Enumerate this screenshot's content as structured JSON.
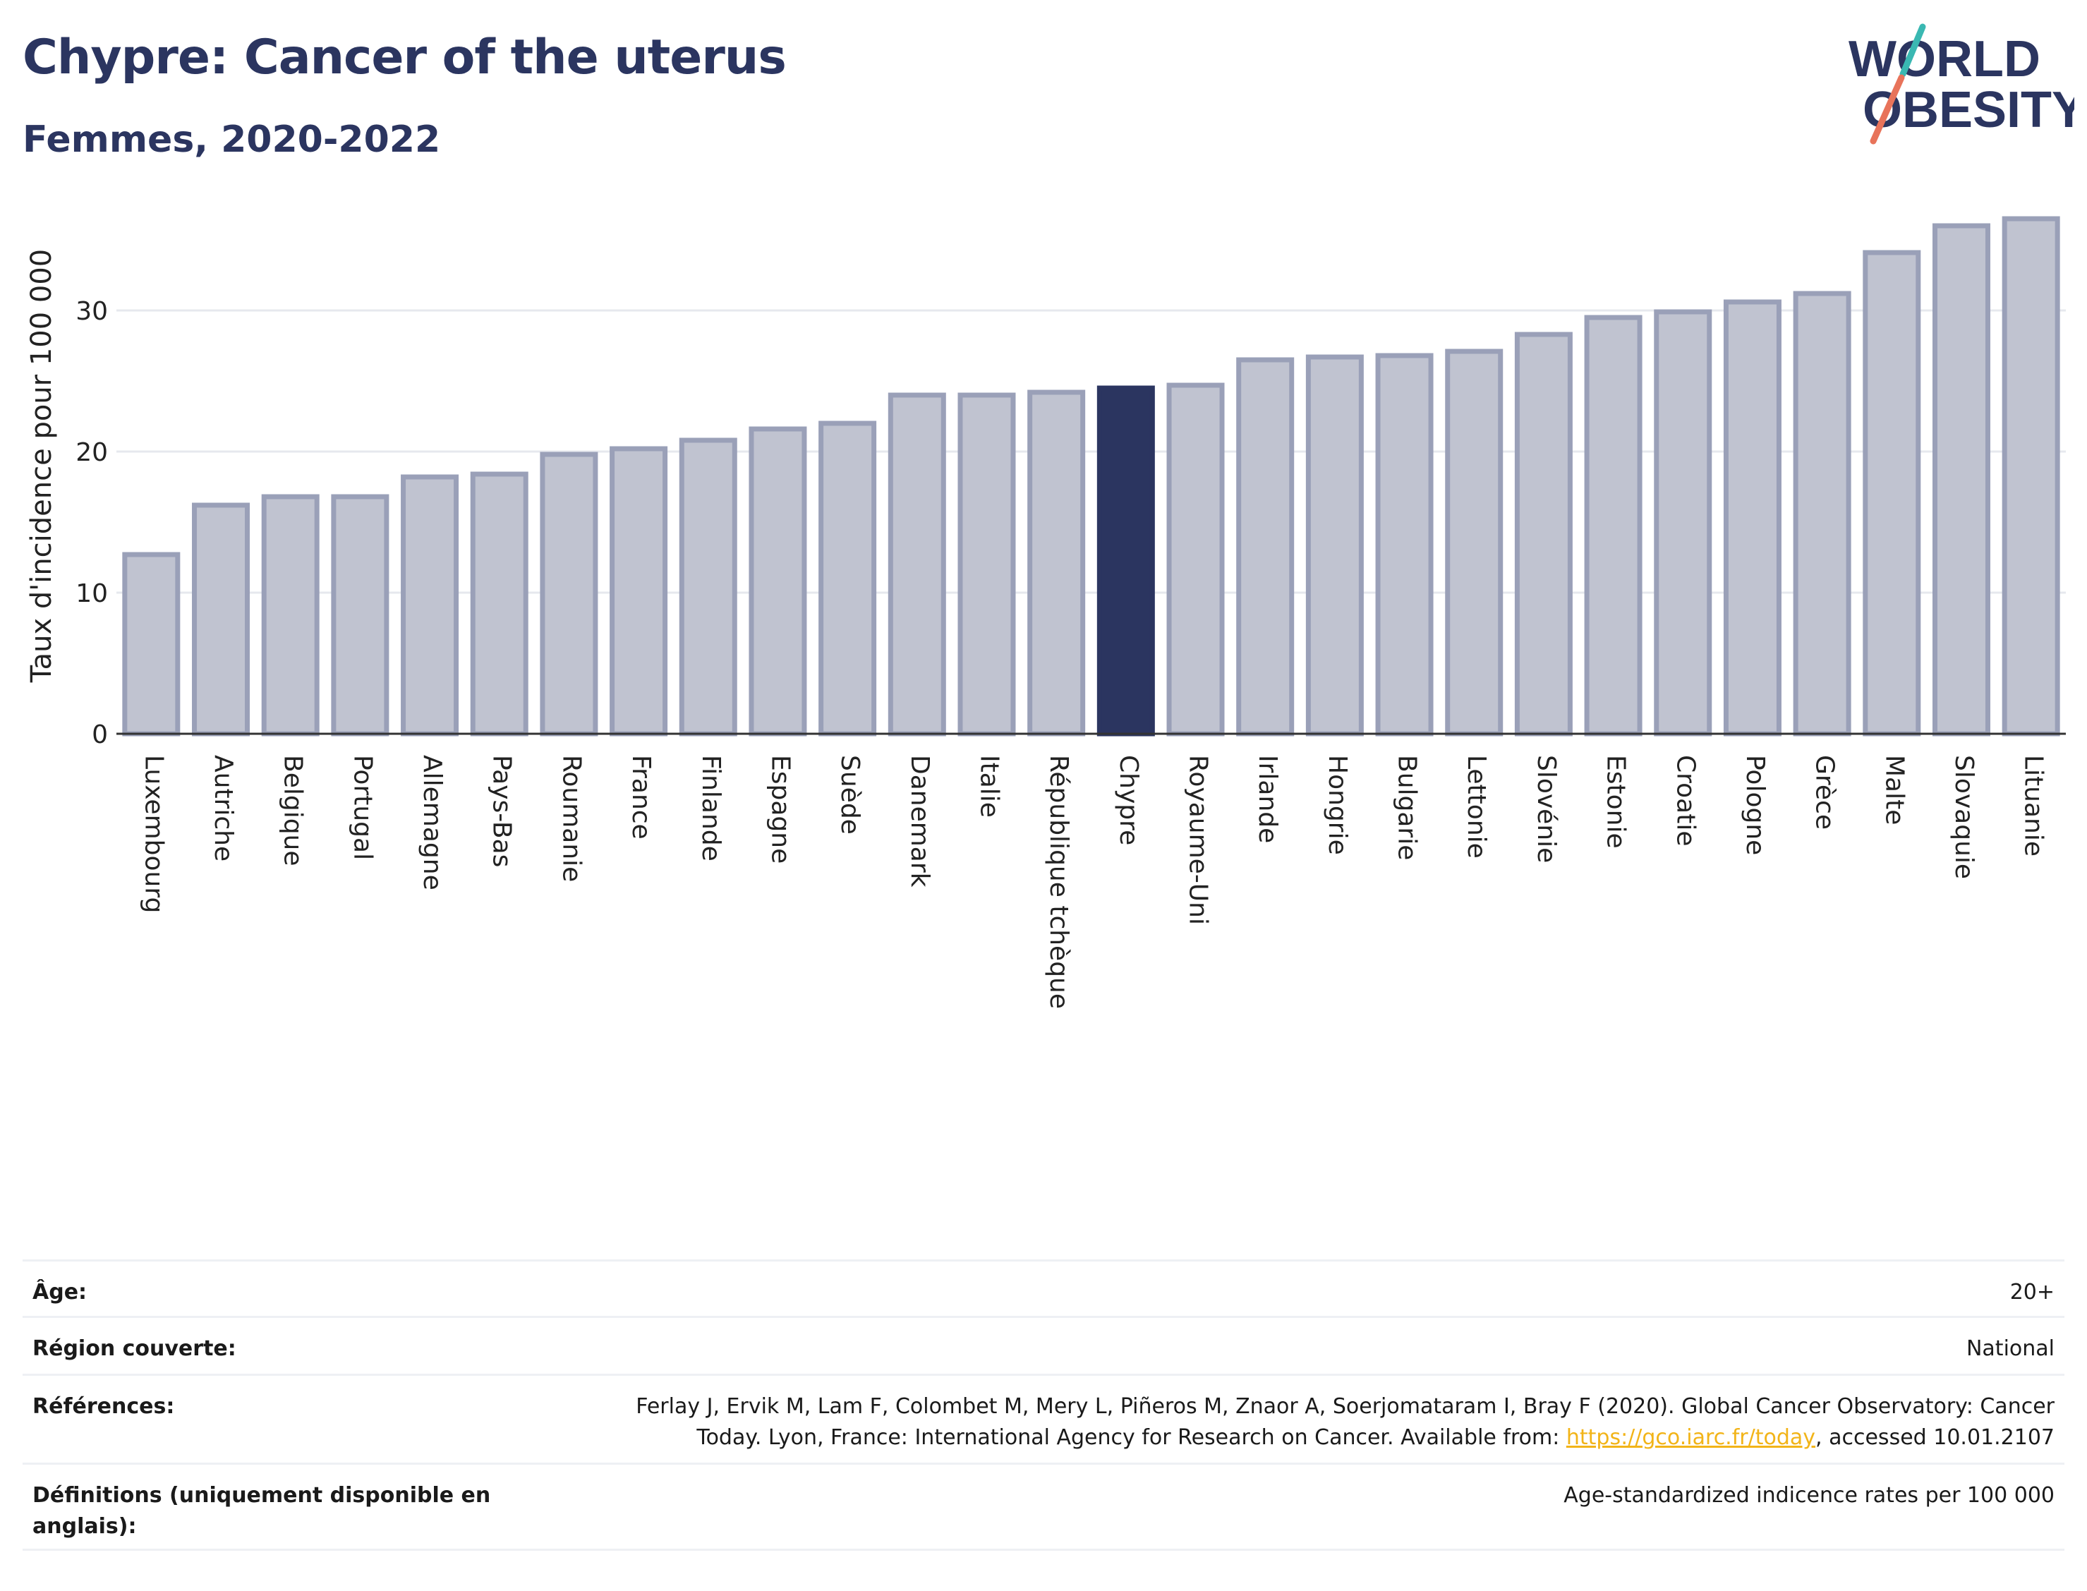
{
  "header": {
    "title": "Chypre: Cancer of the uterus",
    "subtitle": "Femmes, 2020-2022"
  },
  "logo": {
    "line1": "WORLD",
    "line2": "OBESITY"
  },
  "colors": {
    "bar_fill": "#c0c3d0",
    "bar_stroke": "#9aa0b8",
    "highlight": "#2b3560",
    "title": "#2b3560",
    "logo_slash_top": "#3ab8b2",
    "logo_slash_bottom": "#e8735a",
    "link": "#f2b418"
  },
  "chart_data": {
    "type": "bar",
    "ylabel": "Taux d'incidence pour 100 000",
    "ylim": [
      0,
      37
    ],
    "yticks": [
      0,
      10,
      20,
      30
    ],
    "grid": true,
    "highlight": "Chypre",
    "categories": [
      "Luxembourg",
      "Autriche",
      "Belgique",
      "Portugal",
      "Allemagne",
      "Pays-Bas",
      "Roumanie",
      "France",
      "Finlande",
      "Espagne",
      "Suède",
      "Danemark",
      "Italie",
      "République tchèque",
      "Chypre",
      "Royaume-Uni",
      "Irlande",
      "Hongrie",
      "Bulgarie",
      "Lettonie",
      "Slovénie",
      "Estonie",
      "Croatie",
      "Pologne",
      "Grèce",
      "Malte",
      "Slovaquie",
      "Lituanie"
    ],
    "values": [
      12.7,
      16.2,
      16.8,
      16.8,
      18.2,
      18.4,
      19.8,
      20.2,
      20.8,
      21.6,
      22.0,
      24.0,
      24.0,
      24.2,
      24.5,
      24.7,
      26.5,
      26.7,
      26.8,
      27.1,
      28.3,
      29.5,
      29.9,
      30.6,
      31.2,
      34.1,
      36.0,
      36.5
    ]
  },
  "info": {
    "age_label": "Âge:",
    "age_value": "20+",
    "region_label": "Région couverte:",
    "region_value": "National",
    "refs_label": "Références:",
    "refs_text_1": "Ferlay J, Ervik M, Lam F, Colombet M, Mery L, Piñeros M, Znaor A, Soerjomataram I, Bray F (2020). Global Cancer Observatory: Cancer",
    "refs_text_2": "Today. Lyon, France: International Agency for Research on Cancer. Available from: ",
    "refs_link": "https://gco.iarc.fr/today",
    "refs_text_3": ", accessed 10.01.2107",
    "defs_label": "Définitions (uniquement disponible en anglais):",
    "defs_value": "Age-standardized indicence rates per 100 000"
  }
}
